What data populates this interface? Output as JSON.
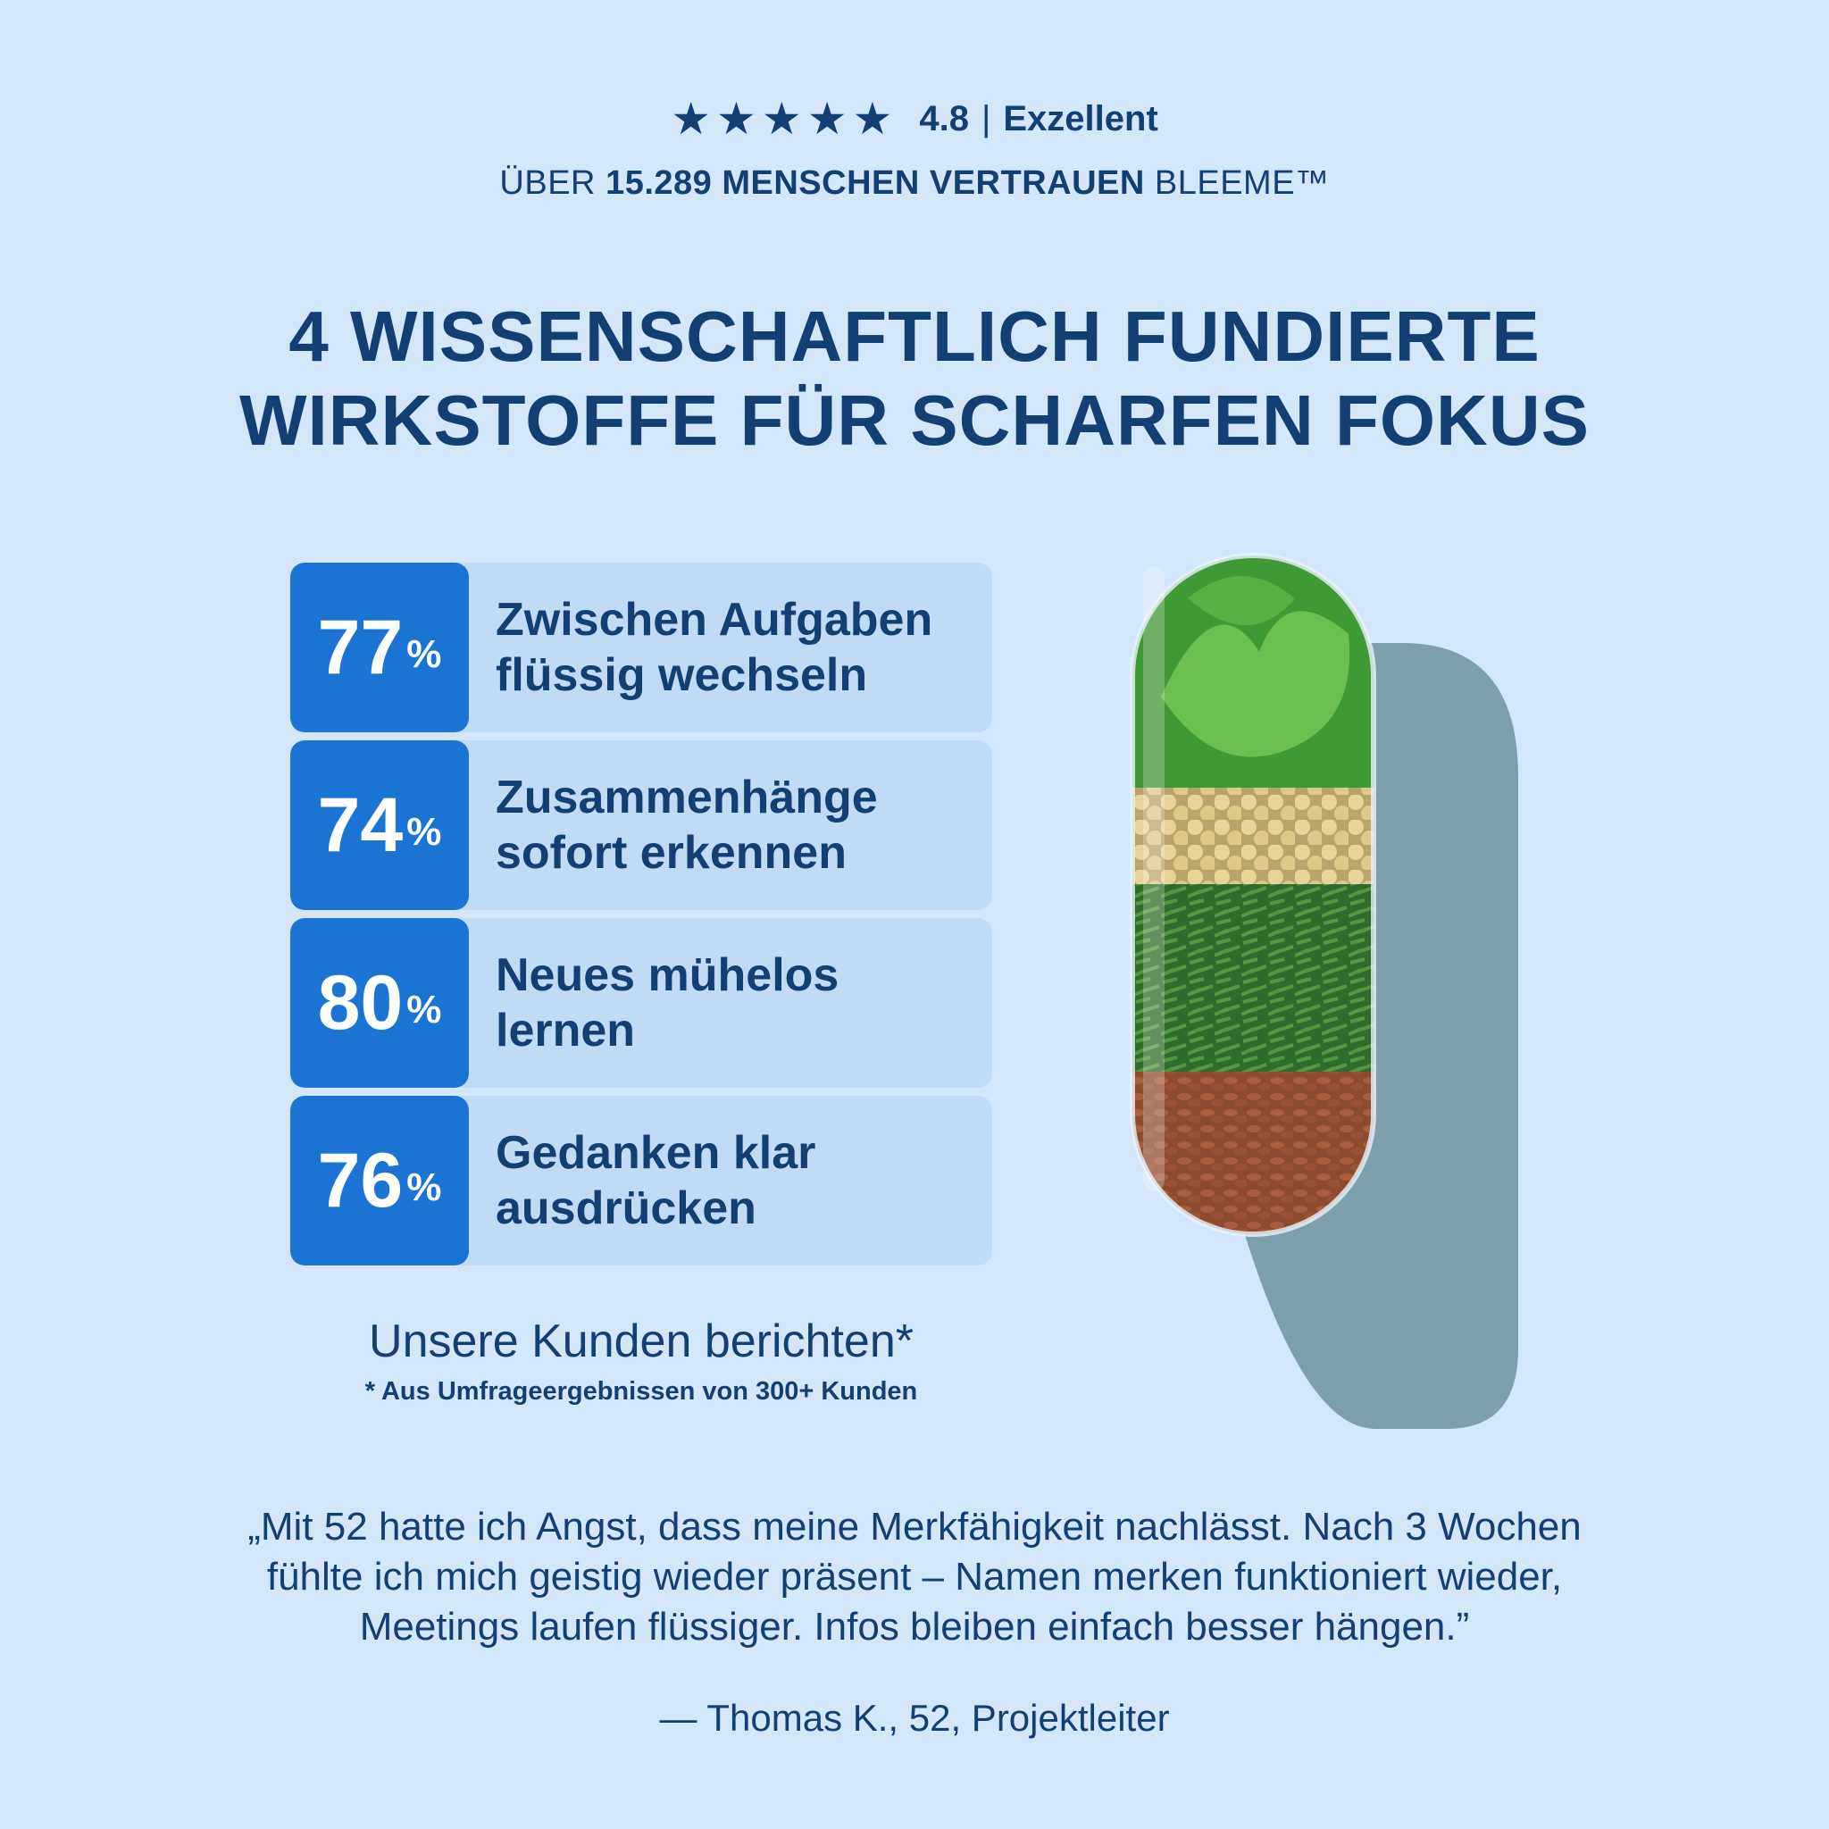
{
  "rating": {
    "star_count": 5,
    "value": "4.8",
    "separator": "|",
    "label": "Exzellent"
  },
  "trust": {
    "prefix": "ÜBER ",
    "highlight": "15.289 MENSCHEN VERTRAUEN",
    "suffix": " BLEEME™"
  },
  "headline": {
    "line1": "4 WISSENSCHAFTLICH FUNDIERTE",
    "line2": "WIRKSTOFFE FÜR SCHARFEN FOKUS"
  },
  "benefits": [
    {
      "percent": "77",
      "sign": "%",
      "line1": "Zwischen Aufgaben",
      "line2": "flüssig wechseln"
    },
    {
      "percent": "74",
      "sign": "%",
      "line1": "Zusammenhänge",
      "line2": "sofort erkennen"
    },
    {
      "percent": "80",
      "sign": "%",
      "line1": "Neues mühelos",
      "line2": "lernen"
    },
    {
      "percent": "76",
      "sign": "%",
      "line1": "Gedanken klar",
      "line2": "ausdrücken"
    }
  ],
  "survey": {
    "caption": "Unsere Kunden berichten*",
    "note": "* Aus Umfrageergebnissen von 300+ Kunden"
  },
  "testimonial": {
    "line1": "„Mit 52 hatte ich Angst, dass meine Merkfähigkeit nachlässt. Nach 3 Wochen",
    "line2": "fühlte ich mich geistig wieder präsent – Namen merken funktioniert wieder,",
    "line3": "Meetings laufen flüssiger. Infos bleiben einfach besser hängen.”",
    "author": "— Thomas K., 52, Projektleiter"
  },
  "colors": {
    "background": "#d3e6fa",
    "text": "#123f74",
    "accent": "#1b74d4",
    "card": "#c1dbf7"
  },
  "image": {
    "name": "capsule-ingredients-illustration",
    "layers": [
      "ginkgo-leaves",
      "soybeans",
      "green-tea",
      "flax-seeds"
    ]
  }
}
